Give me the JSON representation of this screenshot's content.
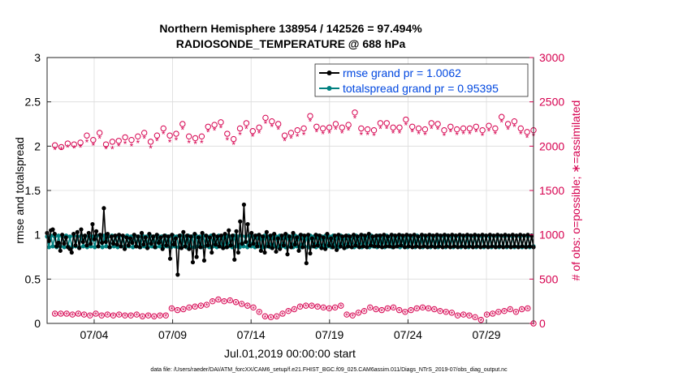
{
  "chart_data": {
    "type": "line",
    "title": "Northern Hemisphere 138954 / 142526 = 97.494%",
    "subtitle": "RADIOSONDE_TEMPERATURE @ 688 hPa",
    "xlabel": "Jul.01,2019 00:00:00 start",
    "ylabel_left": "rmse and totalspread",
    "ylabel_right": "# of obs: o=possible; ∗=assimilated",
    "footnote": "data file: /Users/raeder/DAI/ATM_forcXX/CAM6_setup/f.e21.FHIST_BGC.f09_025.CAM6assim.011/Diags_NTrS_2019-07/obs_diag_output.nc",
    "xlim": [
      0.5,
      31.5
    ],
    "ylim_left": [
      0,
      3
    ],
    "ylim_right": [
      0,
      3000
    ],
    "x_ticks": [
      3.5,
      8.5,
      13.5,
      18.5,
      23.5,
      28.5
    ],
    "x_tick_labels": [
      "07/04",
      "07/09",
      "07/14",
      "07/19",
      "07/24",
      "07/29"
    ],
    "y_ticks_left": [
      "0",
      "0.5",
      "1",
      "1.5",
      "2",
      "2.5",
      "3"
    ],
    "y_ticks_right": [
      "0",
      "500",
      "1000",
      "1500",
      "2000",
      "2500",
      "3000"
    ],
    "legend_position": "top-right",
    "colors": {
      "rmse": "#000000",
      "spread": "#008080",
      "obs": "#d6004f",
      "legend_text": "#0047e0"
    },
    "series": [
      {
        "name": "rmse grand pr = 1.0062",
        "axis": "left",
        "color": "#000000",
        "values": [
          1.02,
          0.93,
          1.05,
          1.06,
          1.01,
          0.87,
          0.91,
          0.82,
          1.0,
          0.9,
          0.97,
          0.86,
          0.84,
          0.8,
          1.01,
          0.88,
          1.03,
          0.85,
          1.06,
          0.92,
          0.99,
          0.88,
          1.02,
          0.9,
          1.12,
          0.95,
          1.04,
          0.87,
          1.0,
          0.91,
          1.3,
          0.92,
          1.01,
          0.86,
          0.98,
          0.9,
          0.99,
          0.89,
          1.0,
          0.87,
          0.99,
          0.84,
          0.97,
          0.88,
          0.96,
          0.91,
          1.0,
          0.87,
          0.98,
          0.86,
          1.02,
          0.89,
          0.97,
          0.85,
          1.01,
          0.9,
          0.98,
          0.86,
          1.0,
          0.91,
          0.97,
          0.84,
          0.99,
          0.88,
          0.98,
          0.73,
          1.0,
          0.89,
          0.96,
          0.55,
          0.99,
          0.85,
          1.03,
          0.87,
          0.99,
          0.84,
          0.98,
          0.69,
          1.01,
          0.75,
          0.97,
          0.86,
          1.02,
          0.71,
          0.99,
          0.88,
          0.97,
          0.8,
          1.0,
          0.89,
          0.98,
          0.87,
          0.99,
          0.85,
          1.01,
          0.86,
          1.05,
          0.88,
          0.99,
          0.72,
          1.04,
          0.8,
          1.15,
          0.9,
          1.34,
          0.92,
          1.12,
          0.88,
          1.02,
          0.9,
          0.99,
          0.87,
          1.0,
          0.82,
          0.98,
          0.8,
          1.03,
          0.87,
          0.99,
          0.85,
          1.01,
          0.81,
          0.96,
          0.84,
          0.99,
          0.88,
          1.01,
          0.78,
          0.98,
          0.86,
          1.02,
          0.89,
          0.97,
          0.82,
          1.0,
          0.86,
          0.99,
          0.68,
          1.0,
          0.79,
          0.96,
          0.87,
          1.0,
          0.88,
          0.99,
          0.85,
          0.97,
          0.84,
          1.01,
          0.88,
          0.96,
          0.86,
          0.99,
          0.83,
          1.0,
          0.87,
          0.98,
          0.85,
          0.99,
          0.87,
          0.98,
          0.86,
          1.0,
          0.88,
          0.98,
          0.86,
          1.0,
          0.87,
          0.99,
          0.86,
          1.01,
          0.88,
          0.98,
          0.87,
          0.99,
          0.87,
          0.99,
          0.86,
          1.0,
          0.87,
          0.98,
          0.87,
          1.0,
          0.86,
          0.99,
          0.87,
          1.0,
          0.88,
          0.99,
          0.86,
          1.0,
          0.87,
          0.99,
          0.86,
          1.0,
          0.87,
          0.98,
          0.86,
          1.0,
          0.87,
          0.99,
          0.86,
          1.0,
          0.87,
          0.99,
          0.86,
          1.0,
          0.87,
          0.99,
          0.86,
          1.0,
          0.87,
          0.99,
          0.86,
          1.0,
          0.87,
          0.99,
          0.86,
          1.0,
          0.87,
          0.99,
          0.86,
          1.0,
          0.87,
          0.99,
          0.86,
          1.0,
          0.87,
          0.99,
          0.86,
          1.0,
          0.87,
          0.99,
          0.86,
          1.0,
          0.87,
          0.99,
          0.86,
          1.0,
          0.87,
          0.99,
          0.86,
          1.0,
          0.87,
          0.99,
          0.86,
          1.0,
          0.87,
          0.99,
          0.86,
          1.0,
          0.87,
          0.99,
          0.86,
          1.0,
          0.87,
          0.99,
          0.86
        ]
      },
      {
        "name": "totalspread grand pr = 0.95395",
        "axis": "left",
        "color": "#008080",
        "values": [
          0.98,
          0.86,
          0.99,
          0.87,
          0.98,
          0.86,
          0.99,
          0.87,
          0.98,
          0.86,
          0.99,
          0.87,
          0.98,
          0.86,
          0.99,
          0.87,
          0.98,
          0.86,
          0.99,
          0.87,
          0.98,
          0.86,
          0.99,
          0.87,
          0.98,
          0.86,
          0.99,
          0.87,
          0.98,
          0.86,
          0.99,
          0.87,
          0.98,
          0.86,
          0.99,
          0.87,
          0.98,
          0.86,
          0.99,
          0.87,
          0.98,
          0.86,
          0.99,
          0.87,
          0.98,
          0.86,
          0.99,
          0.87,
          0.98,
          0.86,
          0.99,
          0.87,
          0.98,
          0.86,
          0.99,
          0.87,
          0.98,
          0.86,
          0.99,
          0.87,
          0.98,
          0.86,
          0.99,
          0.87,
          0.98,
          0.86,
          0.99,
          0.87,
          0.98,
          0.86,
          0.99,
          0.87,
          0.98,
          0.86,
          0.99,
          0.87,
          0.98,
          0.86,
          0.99,
          0.87,
          0.98,
          0.86,
          0.99,
          0.87,
          0.98,
          0.86,
          0.99,
          0.87,
          0.98,
          0.86,
          0.99,
          0.87,
          0.98,
          0.86,
          0.99,
          0.87,
          0.98,
          0.86,
          0.99,
          0.87,
          0.98,
          0.86,
          0.99,
          0.87,
          0.98,
          0.86,
          0.99,
          0.87,
          0.98,
          0.86,
          0.99,
          0.87,
          0.98,
          0.86,
          0.99,
          0.87,
          0.98,
          0.86,
          0.99,
          0.87,
          0.98,
          0.86,
          0.99,
          0.87,
          0.98,
          0.86,
          0.99,
          0.87,
          0.98,
          0.86,
          0.99,
          0.87,
          0.98,
          0.86,
          0.99,
          0.87,
          0.98,
          0.86,
          0.99,
          0.87,
          0.98,
          0.86,
          0.99,
          0.87,
          0.98,
          0.86,
          0.99,
          0.87,
          0.98,
          0.86,
          0.99,
          0.87,
          0.98,
          0.86,
          0.99,
          0.87,
          0.98,
          0.86,
          0.99,
          0.87,
          0.98,
          0.86,
          0.99,
          0.87,
          0.98,
          0.86,
          0.99,
          0.87,
          0.98,
          0.86,
          0.99,
          0.87,
          0.98,
          0.86,
          0.99,
          0.87,
          0.98,
          0.86,
          0.99,
          0.87,
          0.98,
          0.86,
          0.99,
          0.87,
          0.98,
          0.86,
          0.99,
          0.87,
          0.98,
          0.86,
          0.99,
          0.87,
          0.98,
          0.86,
          0.99,
          0.87,
          0.98,
          0.86,
          0.99,
          0.87,
          0.98,
          0.86,
          0.99,
          0.87,
          0.98,
          0.86,
          0.99,
          0.87,
          0.98,
          0.86,
          0.99,
          0.87,
          0.98,
          0.86,
          0.99,
          0.87,
          0.98,
          0.86,
          0.99,
          0.87,
          0.98,
          0.86,
          0.99,
          0.87,
          0.98,
          0.86,
          0.99,
          0.87,
          0.98,
          0.86,
          0.99,
          0.87,
          0.98,
          0.86,
          0.99,
          0.87,
          0.98,
          0.86,
          0.99,
          0.87,
          0.98,
          0.86,
          0.99,
          0.87,
          0.98,
          0.86,
          0.99,
          0.87,
          0.98,
          0.86,
          0.99,
          0.87,
          0.98,
          0.86,
          0.99,
          0.87
        ]
      }
    ],
    "obs_possible": [
      2010,
      1990,
      2030,
      2020,
      2040,
      2120,
      2070,
      2150,
      2020,
      2050,
      2060,
      2100,
      2070,
      2110,
      2150,
      2050,
      2120,
      2200,
      2120,
      2140,
      2250,
      2110,
      2090,
      2110,
      2220,
      2240,
      2270,
      2140,
      2080,
      2200,
      2260,
      2170,
      2210,
      2320,
      2280,
      2250,
      2120,
      2150,
      2180,
      2200,
      2340,
      2220,
      2200,
      2210,
      2250,
      2210,
      2240,
      2380,
      2200,
      2190,
      2180,
      2260,
      2260,
      2210,
      2210,
      2300,
      2220,
      2200,
      2190,
      2260,
      2250,
      2180,
      2220,
      2190,
      2200,
      2200,
      2220,
      2180,
      2230,
      2200,
      2330,
      2250,
      2280,
      2200,
      2160,
      2180
    ],
    "obs_assimilated": [
      1970,
      1970,
      2000,
      1990,
      2000,
      2060,
      2020,
      2100,
      1980,
      1980,
      2010,
      2040,
      2010,
      2050,
      2100,
      1990,
      2070,
      2150,
      2060,
      2080,
      2200,
      2050,
      2040,
      2050,
      2170,
      2190,
      2220,
      2080,
      2030,
      2140,
      2210,
      2120,
      2160,
      2270,
      2230,
      2200,
      2070,
      2100,
      2120,
      2140,
      2290,
      2170,
      2150,
      2160,
      2200,
      2160,
      2190,
      2330,
      2140,
      2140,
      2130,
      2210,
      2210,
      2160,
      2160,
      2250,
      2170,
      2150,
      2140,
      2210,
      2200,
      2130,
      2170,
      2140,
      2150,
      2150,
      2170,
      2130,
      2180,
      2150,
      2280,
      2200,
      2230,
      2150,
      2110,
      2130
    ],
    "obs_low_possible": [
      110,
      110,
      110,
      100,
      110,
      100,
      90,
      110,
      90,
      100,
      90,
      100,
      90,
      90,
      100,
      80,
      90,
      80,
      90,
      90,
      170,
      150,
      160,
      180,
      190,
      200,
      210,
      250,
      270,
      250,
      260,
      240,
      220,
      200,
      180,
      130,
      80,
      70,
      80,
      110,
      140,
      160,
      190,
      200,
      200,
      190,
      180,
      170,
      180,
      200,
      100,
      90,
      120,
      140,
      180,
      160,
      150,
      170,
      180,
      150,
      130,
      150,
      170,
      180,
      170,
      160,
      140,
      130,
      120,
      90,
      100,
      90,
      70,
      40,
      100,
      110,
      130,
      140,
      160,
      130,
      160,
      170,
      0
    ]
  }
}
